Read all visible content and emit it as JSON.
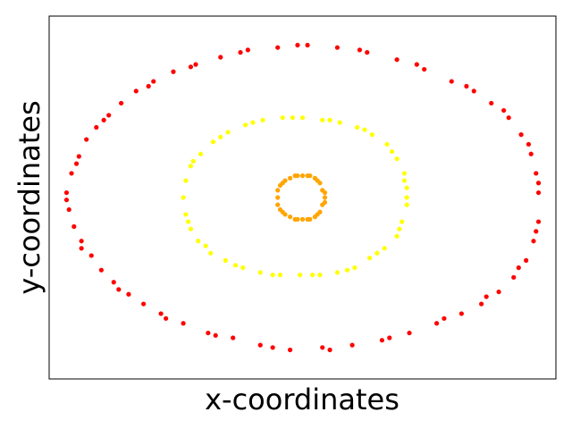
{
  "chart_data": {
    "type": "scatter",
    "title": "",
    "xlabel": "x-coordinates",
    "ylabel": "y-coordinates",
    "xlim": [
      -1.02,
      1.02
    ],
    "ylim": [
      -0.75,
      0.75
    ],
    "xticks": [],
    "yticks": [],
    "grid": false,
    "legend": "none",
    "series": [
      {
        "color": "#ff0000",
        "points": [
          [
            -0.95,
            0.02
          ],
          [
            -0.94,
            -0.05
          ],
          [
            -0.93,
            0.1
          ],
          [
            -0.92,
            -0.12
          ],
          [
            -0.9,
            0.17
          ],
          [
            -0.89,
            -0.18
          ],
          [
            -0.87,
            0.24
          ],
          [
            -0.85,
            -0.24
          ],
          [
            -0.83,
            0.29
          ],
          [
            -0.81,
            -0.3
          ],
          [
            -0.78,
            0.34
          ],
          [
            -0.76,
            -0.35
          ],
          [
            -0.73,
            0.39
          ],
          [
            -0.7,
            -0.4
          ],
          [
            -0.67,
            0.44
          ],
          [
            -0.64,
            -0.44
          ],
          [
            -0.6,
            0.48
          ],
          [
            -0.57,
            -0.48
          ],
          [
            -0.52,
            0.52
          ],
          [
            -0.48,
            -0.52
          ],
          [
            -0.43,
            0.55
          ],
          [
            -0.38,
            -0.56
          ],
          [
            -0.33,
            0.58
          ],
          [
            -0.28,
            -0.58
          ],
          [
            -0.22,
            0.61
          ],
          [
            -0.17,
            -0.61
          ],
          [
            -0.1,
            0.62
          ],
          [
            -0.05,
            -0.63
          ],
          [
            0.02,
            0.63
          ],
          [
            0.08,
            -0.62
          ],
          [
            0.14,
            0.62
          ],
          [
            0.2,
            -0.61
          ],
          [
            0.26,
            0.6
          ],
          [
            0.32,
            -0.59
          ],
          [
            0.38,
            0.57
          ],
          [
            0.43,
            -0.56
          ],
          [
            0.49,
            0.53
          ],
          [
            0.54,
            -0.52
          ],
          [
            0.6,
            0.48
          ],
          [
            0.64,
            -0.48
          ],
          [
            0.69,
            0.44
          ],
          [
            0.72,
            -0.44
          ],
          [
            0.76,
            0.39
          ],
          [
            0.79,
            -0.39
          ],
          [
            0.83,
            0.33
          ],
          [
            0.85,
            -0.33
          ],
          [
            0.88,
            0.26
          ],
          [
            0.9,
            -0.26
          ],
          [
            0.92,
            0.18
          ],
          [
            0.93,
            -0.18
          ],
          [
            0.94,
            0.1
          ],
          [
            0.95,
            -0.1
          ],
          [
            0.95,
            0.02
          ],
          [
            -0.95,
            -0.01
          ],
          [
            -0.91,
            0.14
          ],
          [
            -0.89,
            -0.21
          ],
          [
            -0.8,
            0.32
          ],
          [
            -0.74,
            -0.38
          ],
          [
            -0.62,
            0.46
          ],
          [
            -0.55,
            -0.5
          ],
          [
            -0.45,
            0.54
          ],
          [
            -0.35,
            -0.57
          ],
          [
            -0.25,
            0.6
          ],
          [
            -0.12,
            -0.62
          ],
          [
            -0.02,
            0.63
          ],
          [
            0.11,
            -0.63
          ],
          [
            0.23,
            0.61
          ],
          [
            0.35,
            -0.58
          ],
          [
            0.46,
            0.55
          ],
          [
            0.57,
            -0.5
          ],
          [
            0.66,
            0.46
          ],
          [
            0.74,
            -0.41
          ],
          [
            0.81,
            0.36
          ],
          [
            0.87,
            -0.29
          ],
          [
            0.91,
            0.22
          ],
          [
            0.94,
            -0.14
          ],
          [
            0.95,
            0.06
          ]
        ]
      },
      {
        "color": "#ffff00",
        "points": [
          [
            -0.48,
            0.0
          ],
          [
            -0.47,
            -0.07
          ],
          [
            -0.47,
            0.07
          ],
          [
            -0.45,
            -0.13
          ],
          [
            -0.45,
            0.13
          ],
          [
            -0.42,
            -0.18
          ],
          [
            -0.41,
            0.18
          ],
          [
            -0.37,
            -0.23
          ],
          [
            -0.36,
            0.23
          ],
          [
            -0.31,
            -0.26
          ],
          [
            -0.3,
            0.27
          ],
          [
            -0.24,
            -0.29
          ],
          [
            -0.23,
            0.3
          ],
          [
            -0.17,
            -0.31
          ],
          [
            -0.16,
            0.32
          ],
          [
            -0.09,
            -0.32
          ],
          [
            -0.08,
            0.33
          ],
          [
            -0.01,
            -0.32
          ],
          [
            0.0,
            0.33
          ],
          [
            0.07,
            -0.32
          ],
          [
            0.08,
            0.32
          ],
          [
            0.14,
            -0.31
          ],
          [
            0.15,
            0.31
          ],
          [
            0.21,
            -0.29
          ],
          [
            0.22,
            0.29
          ],
          [
            0.27,
            -0.25
          ],
          [
            0.28,
            0.26
          ],
          [
            0.33,
            -0.21
          ],
          [
            0.34,
            0.22
          ],
          [
            0.38,
            -0.16
          ],
          [
            0.38,
            0.16
          ],
          [
            0.4,
            -0.1
          ],
          [
            0.41,
            0.1
          ],
          [
            0.42,
            -0.03
          ],
          [
            0.42,
            0.04
          ],
          [
            -0.46,
            -0.1
          ],
          [
            -0.44,
            0.15
          ],
          [
            -0.39,
            -0.2
          ],
          [
            -0.33,
            0.25
          ],
          [
            -0.27,
            -0.28
          ],
          [
            -0.2,
            0.31
          ],
          [
            -0.12,
            -0.32
          ],
          [
            -0.04,
            0.33
          ],
          [
            0.04,
            -0.32
          ],
          [
            0.11,
            0.32
          ],
          [
            0.18,
            -0.3
          ],
          [
            0.25,
            0.28
          ],
          [
            0.3,
            -0.23
          ],
          [
            0.36,
            0.19
          ],
          [
            0.39,
            -0.13
          ],
          [
            0.41,
            0.07
          ],
          [
            0.42,
            0.0
          ]
        ]
      },
      {
        "color": "#ffa500",
        "points": [
          [
            -0.1,
            0.0
          ],
          [
            -0.1,
            -0.03
          ],
          [
            -0.1,
            0.03
          ],
          [
            -0.09,
            -0.05
          ],
          [
            -0.09,
            0.05
          ],
          [
            -0.07,
            -0.07
          ],
          [
            -0.07,
            0.07
          ],
          [
            -0.05,
            -0.08
          ],
          [
            -0.05,
            0.08
          ],
          [
            -0.02,
            -0.09
          ],
          [
            -0.02,
            0.09
          ],
          [
            0.0,
            -0.09
          ],
          [
            0.0,
            0.09
          ],
          [
            0.03,
            -0.09
          ],
          [
            0.03,
            0.09
          ],
          [
            0.05,
            -0.08
          ],
          [
            0.05,
            0.08
          ],
          [
            0.07,
            -0.06
          ],
          [
            0.07,
            0.06
          ],
          [
            0.08,
            -0.03
          ],
          [
            0.08,
            0.03
          ],
          [
            0.09,
            0.0
          ],
          [
            -0.08,
            -0.06
          ],
          [
            -0.08,
            0.06
          ],
          [
            -0.03,
            -0.09
          ],
          [
            -0.03,
            0.09
          ],
          [
            0.02,
            -0.09
          ],
          [
            0.02,
            0.09
          ],
          [
            0.06,
            -0.07
          ],
          [
            0.06,
            0.07
          ],
          [
            0.09,
            -0.02
          ],
          [
            0.09,
            0.02
          ]
        ]
      }
    ]
  }
}
